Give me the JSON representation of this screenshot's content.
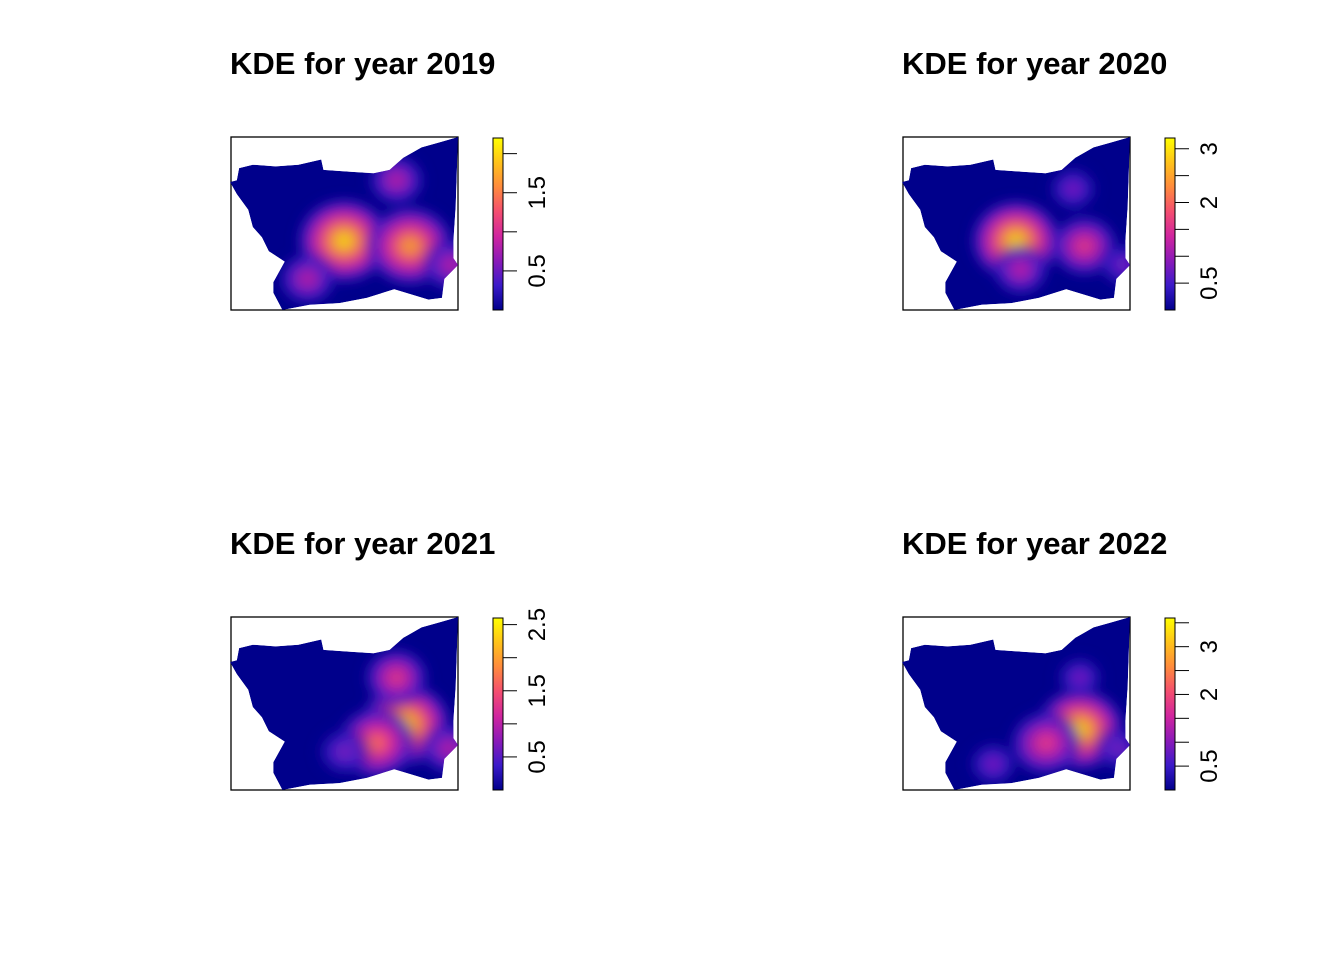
{
  "chart_data": [
    {
      "type": "heatmap",
      "title": "KDE for year 2019",
      "xlabel": "",
      "ylabel": "",
      "legend_placement": "right",
      "color_scale": [
        "#00008B",
        "#3B1AC9",
        "#8A1AB8",
        "#D0259F",
        "#F44E70",
        "#FF8A3D",
        "#FFC21A",
        "#FFFF00"
      ],
      "legend_range": [
        0,
        2.2
      ],
      "legend_ticks": [
        0,
        0.5,
        1.0,
        1.5,
        2.0
      ],
      "legend_tick_labels": [
        "",
        "0.5",
        "",
        "1.5",
        ""
      ],
      "hotspots": [
        {
          "x": 0.5,
          "y": 0.6,
          "density": 2.2
        },
        {
          "x": 0.79,
          "y": 0.63,
          "density": 2.0
        },
        {
          "x": 0.73,
          "y": 0.25,
          "density": 0.85
        },
        {
          "x": 0.34,
          "y": 0.82,
          "density": 0.9
        },
        {
          "x": 0.97,
          "y": 0.74,
          "density": 0.9
        }
      ]
    },
    {
      "type": "heatmap",
      "title": "KDE for year 2020",
      "xlabel": "",
      "ylabel": "",
      "legend_placement": "right",
      "color_scale": [
        "#00008B",
        "#3B1AC9",
        "#8A1AB8",
        "#D0259F",
        "#F44E70",
        "#FF8A3D",
        "#FFC21A",
        "#FFFF00"
      ],
      "legend_range": [
        0,
        3.2
      ],
      "legend_ticks": [
        0,
        0.5,
        1.0,
        1.5,
        2.0,
        2.5,
        3.0
      ],
      "legend_tick_labels": [
        "",
        "0.5",
        "",
        "",
        "2",
        "",
        "3"
      ],
      "hotspots": [
        {
          "x": 0.5,
          "y": 0.6,
          "density": 3.0
        },
        {
          "x": 0.8,
          "y": 0.63,
          "density": 1.8
        },
        {
          "x": 0.75,
          "y": 0.3,
          "density": 0.9
        },
        {
          "x": 0.52,
          "y": 0.77,
          "density": 1.2
        },
        {
          "x": 0.97,
          "y": 0.74,
          "density": 0.9
        }
      ]
    },
    {
      "type": "heatmap",
      "title": "KDE for year 2021",
      "xlabel": "",
      "ylabel": "",
      "legend_placement": "right",
      "color_scale": [
        "#00008B",
        "#3B1AC9",
        "#8A1AB8",
        "#D0259F",
        "#F44E70",
        "#FF8A3D",
        "#FFC21A",
        "#FFFF00"
      ],
      "legend_range": [
        0,
        2.6
      ],
      "legend_ticks": [
        0,
        0.5,
        1.0,
        1.5,
        2.0,
        2.5
      ],
      "legend_tick_labels": [
        "",
        "0.5",
        "",
        "1.5",
        "",
        "2.5"
      ],
      "hotspots": [
        {
          "x": 0.77,
          "y": 0.62,
          "density": 2.5
        },
        {
          "x": 0.64,
          "y": 0.73,
          "density": 2.0
        },
        {
          "x": 0.73,
          "y": 0.35,
          "density": 1.3
        },
        {
          "x": 0.5,
          "y": 0.78,
          "density": 0.9
        },
        {
          "x": 0.96,
          "y": 0.76,
          "density": 1.0
        }
      ]
    },
    {
      "type": "heatmap",
      "title": "KDE for year 2022",
      "xlabel": "",
      "ylabel": "",
      "legend_placement": "right",
      "color_scale": [
        "#00008B",
        "#3B1AC9",
        "#8A1AB8",
        "#D0259F",
        "#F44E70",
        "#FF8A3D",
        "#FFC21A",
        "#FFFF00"
      ],
      "legend_range": [
        0,
        3.6
      ],
      "legend_ticks": [
        0,
        0.5,
        1.0,
        1.5,
        2.0,
        2.5,
        3.0,
        3.5
      ],
      "legend_tick_labels": [
        "",
        "0.5",
        "",
        "",
        "2",
        "",
        "3",
        ""
      ],
      "hotspots": [
        {
          "x": 0.78,
          "y": 0.65,
          "density": 3.4
        },
        {
          "x": 0.63,
          "y": 0.73,
          "density": 2.3
        },
        {
          "x": 0.78,
          "y": 0.35,
          "density": 0.8
        },
        {
          "x": 0.4,
          "y": 0.85,
          "density": 1.0
        },
        {
          "x": 0.95,
          "y": 0.76,
          "density": 1.0
        }
      ]
    }
  ]
}
